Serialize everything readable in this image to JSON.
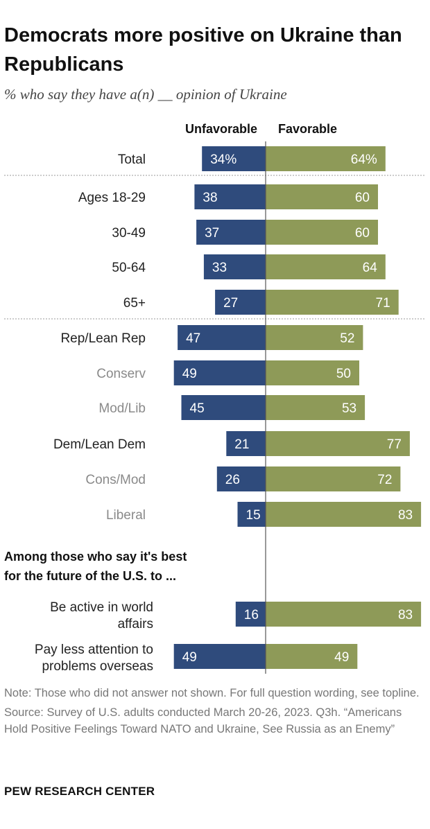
{
  "title": "Democrats more positive on Ukraine than Republicans",
  "subtitle": "% who say they have a(n) __ opinion of Ukraine",
  "chart_data": {
    "type": "bar",
    "orientation": "diverging-horizontal",
    "series": [
      {
        "name": "Unfavorable",
        "color": "#2f4b7c"
      },
      {
        "name": "Favorable",
        "color": "#8e9a58"
      }
    ],
    "rows": [
      {
        "label": "Total",
        "unfavorable": 34,
        "favorable": 64,
        "unfavorable_label": "34%",
        "favorable_label": "64%",
        "muted": false
      },
      {
        "label": "Ages 18-29",
        "unfavorable": 38,
        "favorable": 60,
        "unfavorable_label": "38",
        "favorable_label": "60",
        "muted": false
      },
      {
        "label": "30-49",
        "unfavorable": 37,
        "favorable": 60,
        "unfavorable_label": "37",
        "favorable_label": "60",
        "muted": false
      },
      {
        "label": "50-64",
        "unfavorable": 33,
        "favorable": 64,
        "unfavorable_label": "33",
        "favorable_label": "64",
        "muted": false
      },
      {
        "label": "65+",
        "unfavorable": 27,
        "favorable": 71,
        "unfavorable_label": "27",
        "favorable_label": "71",
        "muted": false
      },
      {
        "label": "Rep/Lean Rep",
        "unfavorable": 47,
        "favorable": 52,
        "unfavorable_label": "47",
        "favorable_label": "52",
        "muted": false
      },
      {
        "label": "Conserv",
        "unfavorable": 49,
        "favorable": 50,
        "unfavorable_label": "49",
        "favorable_label": "50",
        "muted": true
      },
      {
        "label": "Mod/Lib",
        "unfavorable": 45,
        "favorable": 53,
        "unfavorable_label": "45",
        "favorable_label": "53",
        "muted": true
      },
      {
        "label": "Dem/Lean Dem",
        "unfavorable": 21,
        "favorable": 77,
        "unfavorable_label": "21",
        "favorable_label": "77",
        "muted": false
      },
      {
        "label": "Cons/Mod",
        "unfavorable": 26,
        "favorable": 72,
        "unfavorable_label": "26",
        "favorable_label": "72",
        "muted": true
      },
      {
        "label": "Liberal",
        "unfavorable": 15,
        "favorable": 83,
        "unfavorable_label": "15",
        "favorable_label": "83",
        "muted": true
      },
      {
        "label": "Be active in world affairs",
        "unfavorable": 16,
        "favorable": 83,
        "unfavorable_label": "16",
        "favorable_label": "83",
        "muted": false
      },
      {
        "label": "Pay less attention to problems overseas",
        "unfavorable": 49,
        "favorable": 49,
        "unfavorable_label": "49",
        "favorable_label": "49",
        "muted": false
      }
    ],
    "section_heading": "Among those who say it's best for the future of the U.S. to ...",
    "xlim": [
      -50,
      85
    ]
  },
  "note": "Note: Those who did not answer not shown. For full question wording, see topline.",
  "source": "Source: Survey of U.S. adults conducted March 20-26, 2023. Q3h. “Americans Hold Positive Feelings Toward NATO and Ukraine, See Russia as an Enemy”",
  "brand": "PEW RESEARCH CENTER"
}
